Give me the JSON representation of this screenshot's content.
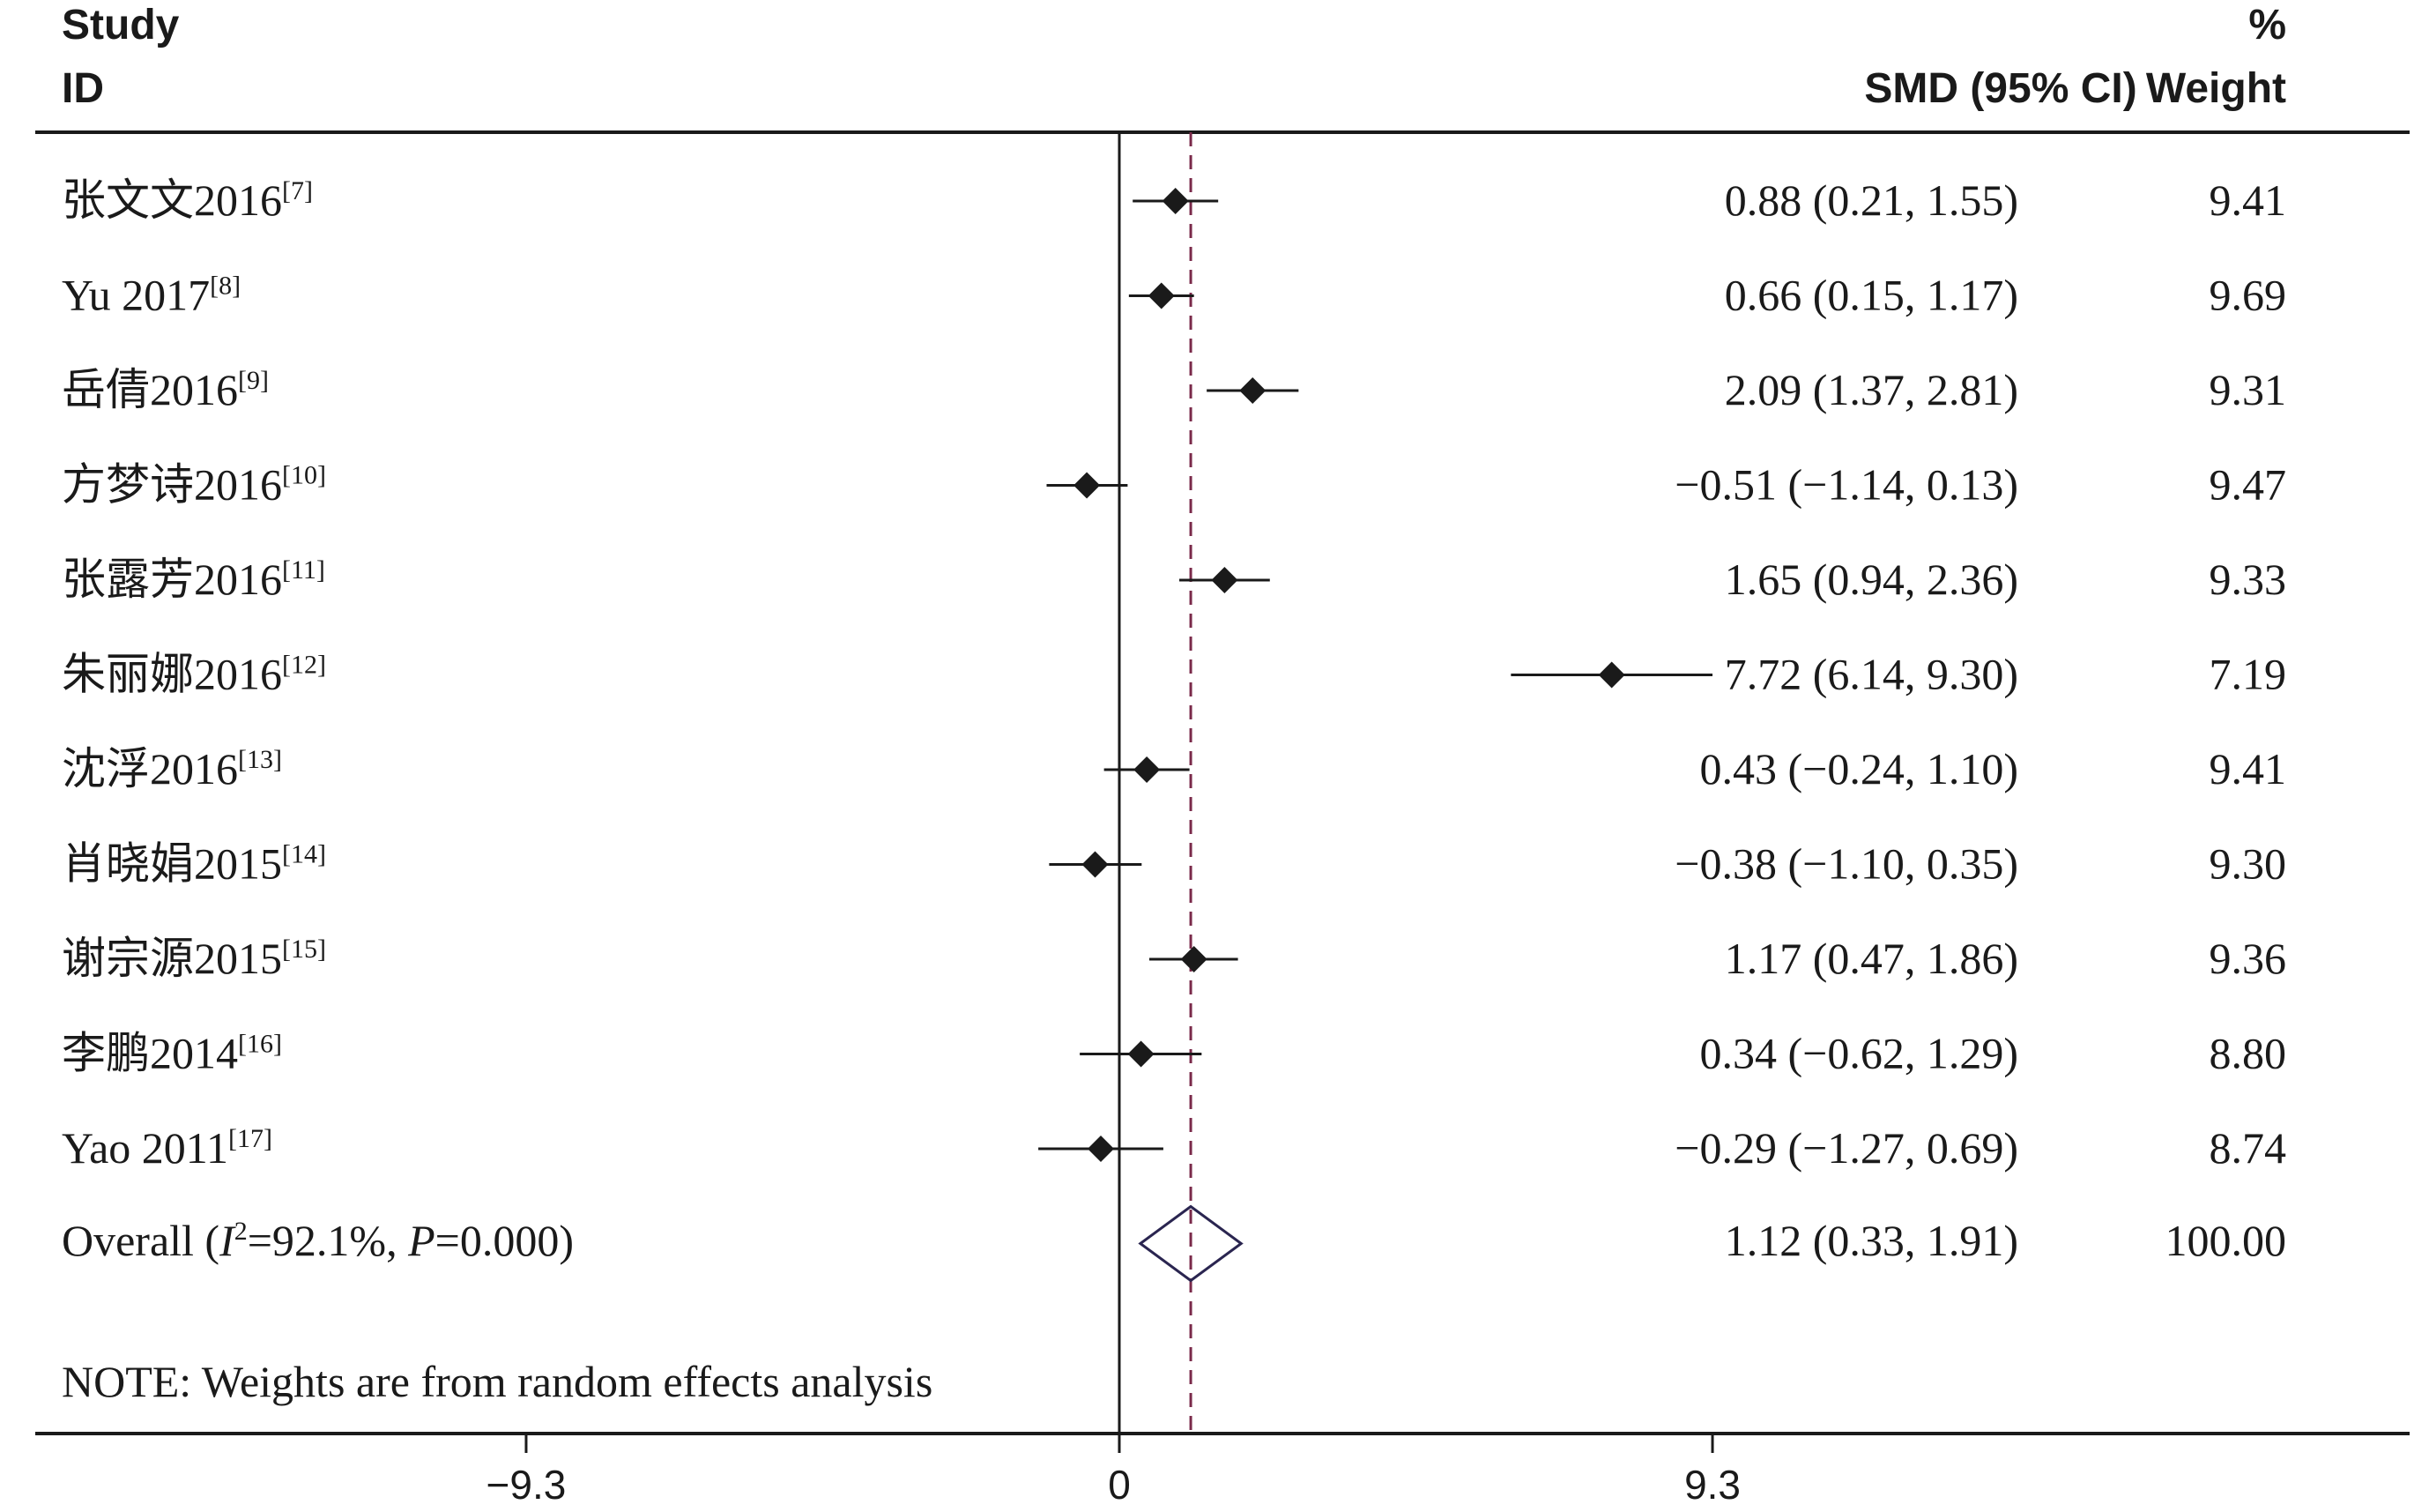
{
  "header": {
    "col_study_line1": "Study",
    "col_study_line2": "ID",
    "col_effect": "SMD (95% CI)",
    "col_weight_line1": "%",
    "col_weight_line2": "Weight"
  },
  "footnote": "NOTE: Weights are from random effects analysis",
  "colors": {
    "ink": "#1a1a1a",
    "reference_line": "#7a2a4a",
    "overall_diamond": "#2a2550"
  },
  "chart_data": {
    "type": "forest",
    "measure": "SMD",
    "x_ticks": [
      -9.3,
      0,
      9.3
    ],
    "x_tick_labels": [
      "−9.3",
      "0",
      "9.3"
    ],
    "studies": [
      {
        "name": "张文文2016",
        "ref": "[7]",
        "smd": 0.88,
        "lower": 0.21,
        "upper": 1.55,
        "ci_text": "0.88 (0.21, 1.55)",
        "weight": "9.41"
      },
      {
        "name": "Yu 2017",
        "ref": "[8]",
        "smd": 0.66,
        "lower": 0.15,
        "upper": 1.17,
        "ci_text": "0.66 (0.15, 1.17)",
        "weight": "9.69"
      },
      {
        "name": "岳倩2016",
        "ref": "[9]",
        "smd": 2.09,
        "lower": 1.37,
        "upper": 2.81,
        "ci_text": "2.09 (1.37, 2.81)",
        "weight": "9.31"
      },
      {
        "name": "方梦诗2016",
        "ref": "[10]",
        "smd": -0.51,
        "lower": -1.14,
        "upper": 0.13,
        "ci_text": "−0.51 (−1.14, 0.13)",
        "weight": "9.47"
      },
      {
        "name": "张露芳2016",
        "ref": "[11]",
        "smd": 1.65,
        "lower": 0.94,
        "upper": 2.36,
        "ci_text": "1.65 (0.94, 2.36)",
        "weight": "9.33"
      },
      {
        "name": "朱丽娜2016",
        "ref": "[12]",
        "smd": 7.72,
        "lower": 6.14,
        "upper": 9.3,
        "ci_text": "7.72 (6.14, 9.30)",
        "weight": "7.19"
      },
      {
        "name": "沈浮2016",
        "ref": "[13]",
        "smd": 0.43,
        "lower": -0.24,
        "upper": 1.1,
        "ci_text": "0.43 (−0.24, 1.10)",
        "weight": "9.41"
      },
      {
        "name": "肖晓娟2015",
        "ref": "[14]",
        "smd": -0.38,
        "lower": -1.1,
        "upper": 0.35,
        "ci_text": "−0.38 (−1.10, 0.35)",
        "weight": "9.30"
      },
      {
        "name": "谢宗源2015",
        "ref": "[15]",
        "smd": 1.17,
        "lower": 0.47,
        "upper": 1.86,
        "ci_text": "1.17 (0.47, 1.86)",
        "weight": "9.36"
      },
      {
        "name": "李鹏2014",
        "ref": "[16]",
        "smd": 0.34,
        "lower": -0.62,
        "upper": 1.29,
        "ci_text": "0.34 (−0.62, 1.29)",
        "weight": "8.80"
      },
      {
        "name": "Yao 2011",
        "ref": "[17]",
        "smd": -0.29,
        "lower": -1.27,
        "upper": 0.69,
        "ci_text": "−0.29 (−1.27, 0.69)",
        "weight": "8.74"
      }
    ],
    "overall": {
      "label_prefix": "Overall  (",
      "i2_symbol": "I",
      "i2_exp": "2",
      "i2_value": "=92.1%, ",
      "p_symbol": "P",
      "p_value": "=0.000)",
      "smd": 1.12,
      "lower": 0.33,
      "upper": 1.91,
      "ci_text": "1.12 (0.33, 1.91)",
      "weight": "100.00"
    }
  }
}
